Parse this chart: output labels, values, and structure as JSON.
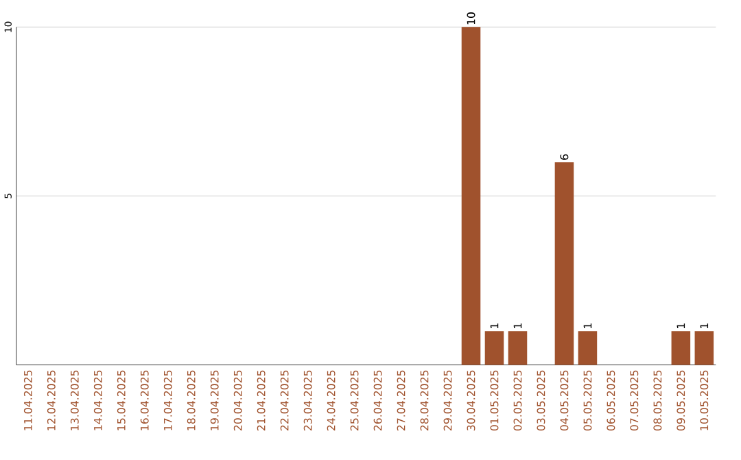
{
  "chart_data": {
    "type": "bar",
    "categories": [
      "11.04.2025",
      "12.04.2025",
      "13.04.2025",
      "14.04.2025",
      "15.04.2025",
      "16.04.2025",
      "17.04.2025",
      "18.04.2025",
      "19.04.2025",
      "20.04.2025",
      "21.04.2025",
      "22.04.2025",
      "23.04.2025",
      "24.04.2025",
      "25.04.2025",
      "26.04.2025",
      "27.04.2025",
      "28.04.2025",
      "29.04.2025",
      "30.04.2025",
      "01.05.2025",
      "02.05.2025",
      "03.05.2025",
      "04.05.2025",
      "05.05.2025",
      "06.05.2025",
      "07.05.2025",
      "08.05.2025",
      "09.05.2025",
      "10.05.2025"
    ],
    "values": [
      0,
      0,
      0,
      0,
      0,
      0,
      0,
      0,
      0,
      0,
      0,
      0,
      0,
      0,
      0,
      0,
      0,
      0,
      0,
      10,
      1,
      1,
      0,
      6,
      1,
      0,
      0,
      0,
      1,
      1
    ],
    "value_labels": [
      null,
      null,
      null,
      null,
      null,
      null,
      null,
      null,
      null,
      null,
      null,
      null,
      null,
      null,
      null,
      null,
      null,
      null,
      null,
      "10",
      "1",
      "1",
      null,
      "6",
      "1",
      null,
      null,
      null,
      "1",
      "1"
    ],
    "color": "#a0522d",
    "ylim": [
      0,
      10
    ],
    "yticks": [
      5,
      10
    ],
    "grid": "y"
  }
}
